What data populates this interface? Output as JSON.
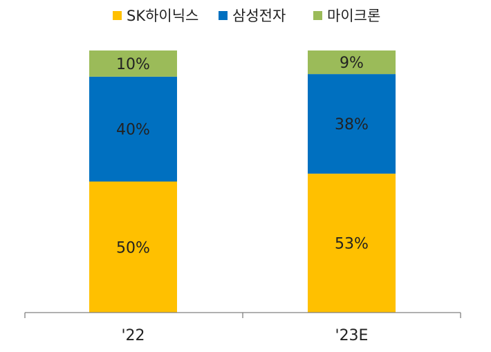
{
  "chart_data": {
    "type": "bar",
    "stacked": true,
    "categories": [
      "'22",
      "'23E"
    ],
    "series": [
      {
        "name": "SK하이닉스",
        "values": [
          50,
          53
        ],
        "labels": [
          "50%",
          "53%"
        ]
      },
      {
        "name": "삼성전자",
        "values": [
          40,
          38
        ],
        "labels": [
          "40%",
          "38%"
        ]
      },
      {
        "name": "마이크론",
        "values": [
          10,
          9
        ],
        "labels": [
          "10%",
          "9%"
        ]
      }
    ],
    "title": "",
    "xlabel": "",
    "ylabel": "",
    "ylim": [
      0,
      100
    ],
    "unit": "%",
    "legend_position": "top",
    "grid": false
  },
  "colors": {
    "SK하이닉스": "#FFC000",
    "삼성전자": "#0070C0",
    "마이크론": "#9BBB59",
    "axis": "#808080",
    "text": "#222222"
  }
}
